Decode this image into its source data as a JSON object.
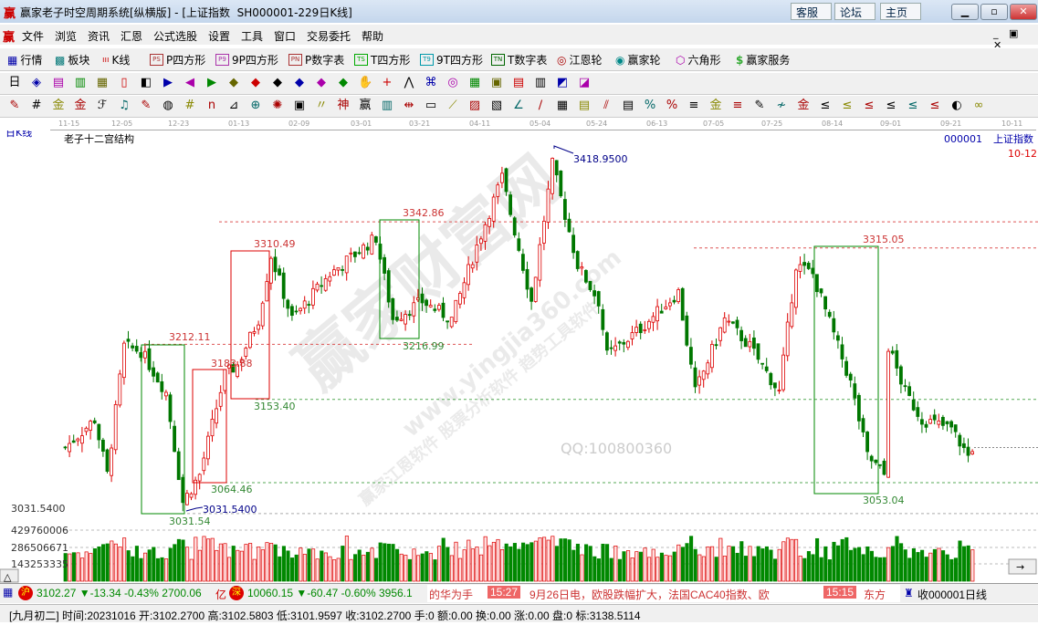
{
  "window": {
    "title": "赢家老子时空周期系统[纵横版] - [上证指数  SH000001-229日K线]",
    "logo": "赢",
    "links": [
      "客服",
      "论坛",
      "主页"
    ],
    "controls": [
      "minimize",
      "maximize",
      "close"
    ]
  },
  "menu": {
    "items": [
      "文件",
      "浏览",
      "资讯",
      "汇恩",
      "公式选股",
      "设置",
      "工具",
      "窗口",
      "交易委托",
      "帮助"
    ]
  },
  "toolbar1": {
    "items": [
      {
        "icon": "PS",
        "label": "P四方形"
      },
      {
        "icon": "P9",
        "label": "9P四方形"
      },
      {
        "icon": "PN",
        "label": "P数字表"
      },
      {
        "icon": "TS",
        "label": "T四方形"
      },
      {
        "icon": "T9",
        "label": "9T四方形"
      },
      {
        "icon": "TN",
        "label": "T数字表"
      }
    ],
    "hangqing": "行情",
    "bankuai": "板块",
    "kxian": "K线",
    "jiangen": "江恩轮",
    "yingjia": "赢家轮",
    "liujiao": "六角形",
    "fuwu": "赢家服务"
  },
  "chart": {
    "period_label": "日K线",
    "indicator_name": "老子十二宫结构",
    "code": "000001",
    "name": "上证指数",
    "corner_date": "10-12",
    "dates": [
      "11-15",
      "12-05",
      "12-23",
      "01-13",
      "02-09",
      "03-01",
      "03-21",
      "04-11",
      "05-04",
      "05-24",
      "06-13",
      "07-05",
      "07-25",
      "08-14",
      "09-01",
      "09-21",
      "10-11"
    ],
    "low_axis_label": "3031.5400",
    "annotations": {
      "high": "3418.9500",
      "low": "3031.5400",
      "l1": "3212.11",
      "l2": "3031.54",
      "l3": "3183.88",
      "l4": "3064.46",
      "l5": "3310.49",
      "l6": "3153.40",
      "l7": "3342.86",
      "l8": "3216.99",
      "l9": "3315.05",
      "l10": "3053.04"
    },
    "volume_axis": [
      "429760006",
      "286506671",
      "143253335"
    ],
    "watermark": [
      "赢家财富网",
      "赢家江恩软件  股票分析软件  趋势工具软件",
      "www.yingjia360.com",
      "QQ:100800360"
    ]
  },
  "chart_data": {
    "type": "candlestick",
    "note_units": "index points",
    "y_range": [
      3031.54,
      3418.95
    ],
    "price_path": [
      [
        0,
        3102
      ],
      [
        7,
        3132
      ],
      [
        10,
        3073
      ],
      [
        14,
        3210
      ],
      [
        18,
        3205
      ],
      [
        24,
        3161
      ],
      [
        28,
        3044
      ],
      [
        32,
        3073
      ],
      [
        38,
        3180
      ],
      [
        41,
        3190
      ],
      [
        46,
        3239
      ],
      [
        49,
        3307
      ],
      [
        54,
        3239
      ],
      [
        63,
        3287
      ],
      [
        74,
        3326
      ],
      [
        78,
        3239
      ],
      [
        85,
        3258
      ],
      [
        92,
        3239
      ],
      [
        98,
        3317
      ],
      [
        104,
        3390
      ],
      [
        111,
        3258
      ],
      [
        116,
        3404
      ],
      [
        122,
        3297
      ],
      [
        127,
        3258
      ],
      [
        129,
        3200
      ],
      [
        137,
        3229
      ],
      [
        146,
        3268
      ],
      [
        150,
        3161
      ],
      [
        157,
        3239
      ],
      [
        163,
        3210
      ],
      [
        170,
        3161
      ],
      [
        174,
        3297
      ],
      [
        178,
        3287
      ],
      [
        184,
        3210
      ],
      [
        187,
        3171
      ],
      [
        191,
        3093
      ],
      [
        195,
        3073
      ],
      [
        196,
        3210
      ],
      [
        200,
        3161
      ],
      [
        204,
        3132
      ],
      [
        211,
        3122
      ],
      [
        215,
        3093
      ],
      [
        216,
        3102
      ]
    ]
  },
  "ticker": {
    "sh_badge": "沪",
    "sh_text": "3102.27 ▼-13.34 -0.43% 2700.06",
    "sh_unit": "亿",
    "sz_badge": "深",
    "sz_text": "10060.15 ▼-60.47 -0.60% 3956.1",
    "news1": "的华为手",
    "time1": "15:27",
    "news2": "9月26日电，欧股跌幅扩大，法国CAC40指数、欧",
    "time2": "15:15",
    "news3": "东方",
    "right": "收000001日线"
  },
  "status": {
    "text": "[九月初二] 时间:20231016 开:3102.2700 高:3102.5803 低:3101.9597 收:3102.2700 手:0 额:0.00 换:0.00 涨:0.00 盘:0 标:3138.5114"
  },
  "colors": {
    "up": "#d00000",
    "down": "#007a00",
    "blue": "#00008b"
  }
}
